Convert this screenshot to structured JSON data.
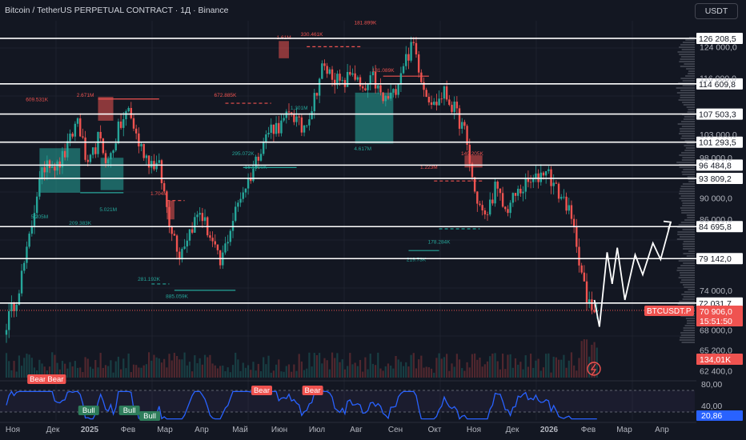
{
  "header": {
    "title": "Bitcoin / TetherUS PERPETUAL CONTRACT · 1Д · Binance",
    "currency_button": "USDT"
  },
  "colors": {
    "background": "#131722",
    "bull": "#26a69a",
    "bear": "#ef5350",
    "level_line": "#ffffff",
    "rsi_line": "#2962ff",
    "grid": "#1e222d",
    "axis_text": "#b2b5be"
  },
  "chart_data": {
    "type": "line",
    "symbol": "BTCUSDT.P",
    "time_axis_labels": [
      "Ноя",
      "Дек",
      "2025",
      "Фев",
      "Мар",
      "Апр",
      "Май",
      "Июн",
      "Июл",
      "Авг",
      "Сен",
      "Окт",
      "Ноя",
      "Дек",
      "2026",
      "Фев",
      "Мар",
      "Апр"
    ],
    "price_axis_labels": [
      "124 000,0",
      "116 000,0",
      "103 000,0",
      "98 000,0",
      "90 000,0",
      "86 000,0",
      "74 000,0",
      "68 000,0",
      "65 200,0",
      "62 400,0"
    ],
    "scale": "log",
    "ylim": [
      61500,
      131000
    ],
    "price_path": [
      [
        0,
        69000
      ],
      [
        4,
        73000
      ],
      [
        8,
        80000
      ],
      [
        12,
        91000
      ],
      [
        16,
        98000
      ],
      [
        20,
        96000
      ],
      [
        24,
        100000
      ],
      [
        28,
        106500
      ],
      [
        32,
        95500
      ],
      [
        36,
        102000
      ],
      [
        40,
        97000
      ],
      [
        44,
        104000
      ],
      [
        48,
        108500
      ],
      [
        52,
        101000
      ],
      [
        56,
        97500
      ],
      [
        60,
        96000
      ],
      [
        64,
        86000
      ],
      [
        68,
        80000
      ],
      [
        72,
        84000
      ],
      [
        76,
        87500
      ],
      [
        80,
        83000
      ],
      [
        84,
        78000
      ],
      [
        88,
        84500
      ],
      [
        92,
        90500
      ],
      [
        96,
        94500
      ],
      [
        100,
        100500
      ],
      [
        104,
        104500
      ],
      [
        108,
        105000
      ],
      [
        112,
        108000
      ],
      [
        116,
        104000
      ],
      [
        120,
        109000
      ],
      [
        124,
        118500
      ],
      [
        128,
        117000
      ],
      [
        132,
        114000
      ],
      [
        136,
        118000
      ],
      [
        140,
        112000
      ],
      [
        144,
        116000
      ],
      [
        148,
        110500
      ],
      [
        152,
        112000
      ],
      [
        156,
        120000
      ],
      [
        160,
        124500
      ],
      [
        164,
        114000
      ],
      [
        168,
        109500
      ],
      [
        172,
        112500
      ],
      [
        176,
        108500
      ],
      [
        180,
        103500
      ],
      [
        184,
        91000
      ],
      [
        188,
        86000
      ],
      [
        192,
        92000
      ],
      [
        196,
        87500
      ],
      [
        200,
        90500
      ],
      [
        204,
        92500
      ],
      [
        208,
        93500
      ],
      [
        212,
        96000
      ],
      [
        216,
        91500
      ],
      [
        220,
        89000
      ],
      [
        224,
        82000
      ],
      [
        228,
        72000
      ],
      [
        232,
        70906
      ]
    ],
    "levels": [
      {
        "label": "126 208,5",
        "value": 126208.5
      },
      {
        "label": "114 609,8",
        "value": 114609.8
      },
      {
        "label": "107 503,3",
        "value": 107503.3
      },
      {
        "label": "101 293,5",
        "value": 101293.5
      },
      {
        "label": "96 484,8",
        "value": 96484.8
      },
      {
        "label": "93 809,2",
        "value": 93809.2
      },
      {
        "label": "84 695,8",
        "value": 84695.8
      },
      {
        "label": "79 142,0",
        "value": 79142.0
      },
      {
        "label": "72 031,7",
        "value": 72031.7
      }
    ],
    "current_price": {
      "label": "70 906,0",
      "value": 70906.0,
      "countdown": "15:51:50"
    },
    "volume_label": "134,01K",
    "volume_annotations": [
      {
        "text": "609.531K",
        "x": 12,
        "price": 110500
      },
      {
        "text": "2.671M",
        "x": 31,
        "price": 111500
      },
      {
        "text": "5.205M",
        "x": 13,
        "price": 86200
      },
      {
        "text": "209.383K",
        "x": 29,
        "price": 85000
      },
      {
        "text": "5.021M",
        "x": 40,
        "price": 87500
      },
      {
        "text": "1.704M",
        "x": 60,
        "price": 90500
      },
      {
        "text": "281.192K",
        "x": 56,
        "price": 75500
      },
      {
        "text": "885.059K",
        "x": 67,
        "price": 72800
      },
      {
        "text": "672.885K",
        "x": 86,
        "price": 111500
      },
      {
        "text": "295.072K",
        "x": 93,
        "price": 98500
      },
      {
        "text": "167.990K",
        "x": 98,
        "price": 95700
      },
      {
        "text": "1.61M",
        "x": 109,
        "price": 126000
      },
      {
        "text": "330.461K",
        "x": 120,
        "price": 126800
      },
      {
        "text": "1.301M",
        "x": 115,
        "price": 108500
      },
      {
        "text": "181.899K",
        "x": 141,
        "price": 130000
      },
      {
        "text": "131.089K",
        "x": 148,
        "price": 117500
      },
      {
        "text": "4.617M",
        "x": 140,
        "price": 99500
      },
      {
        "text": "149.205K",
        "x": 183,
        "price": 98500
      },
      {
        "text": "1.223M",
        "x": 166,
        "price": 95700
      },
      {
        "text": "178.284K",
        "x": 170,
        "price": 81700
      },
      {
        "text": "219.73K",
        "x": 161,
        "price": 78700
      }
    ],
    "forecast_path": [
      [
        231,
        72500
      ],
      [
        233,
        68500
      ],
      [
        236,
        80200
      ],
      [
        238,
        75000
      ],
      [
        240,
        81000
      ],
      [
        243,
        72500
      ],
      [
        247,
        79800
      ],
      [
        250,
        76500
      ],
      [
        254,
        81800
      ],
      [
        257,
        79000
      ],
      [
        261,
        85500
      ]
    ],
    "rsi": {
      "levels": [
        "80,00",
        "40,00"
      ],
      "current": "20,86",
      "labels": [
        {
          "text": "Bear",
          "type": "bear",
          "x": 12
        },
        {
          "text": "Bear",
          "type": "bear",
          "x": 19
        },
        {
          "text": "Bull",
          "type": "bull",
          "x": 32
        },
        {
          "text": "Bull",
          "type": "bull",
          "x": 48
        },
        {
          "text": "Bull",
          "type": "bull",
          "x": 56
        },
        {
          "text": "Bear",
          "type": "bear",
          "x": 100
        },
        {
          "text": "Bear",
          "type": "bear",
          "x": 120
        }
      ]
    }
  }
}
